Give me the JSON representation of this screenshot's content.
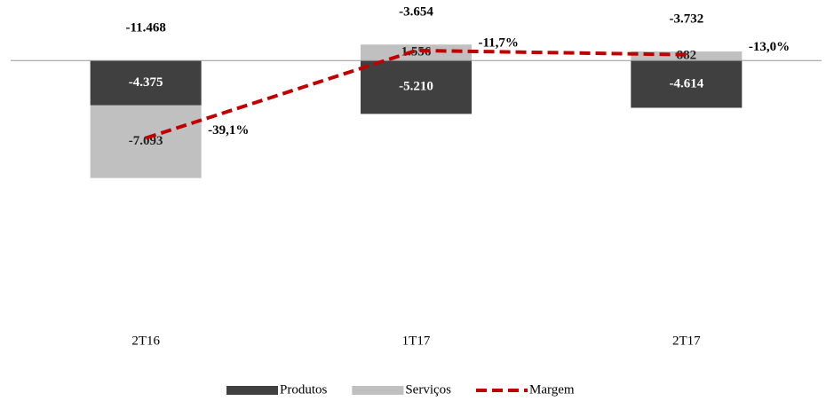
{
  "chart_data": {
    "type": "stacked-bar-line",
    "categories": [
      "2T16",
      "1T17",
      "2T17"
    ],
    "series": [
      {
        "name": "Produtos",
        "color": "#404040",
        "values": [
          -4375,
          -5210,
          -4614
        ],
        "value_labels": [
          "-4.375",
          "-5.210",
          "-4.614"
        ]
      },
      {
        "name": "Serviços",
        "color": "#c0c0c0",
        "values": [
          -7093,
          1556,
          882
        ],
        "value_labels": [
          "-7.093",
          "1.556",
          "882"
        ]
      },
      {
        "name": "Margem",
        "color": "#c00000",
        "axis": "y2",
        "values": [
          -39.1,
          -11.7,
          -13.0
        ],
        "value_labels": [
          "-39,1%",
          "-11,7%",
          "-13,0%"
        ]
      }
    ],
    "totals": {
      "values": [
        -11468,
        -3654,
        -3732
      ],
      "value_labels": [
        "-11.468",
        "-3.654",
        "-3.732"
      ]
    },
    "ylim": [
      -25000,
      4000
    ],
    "y2lim": [
      -95,
      -2
    ]
  }
}
